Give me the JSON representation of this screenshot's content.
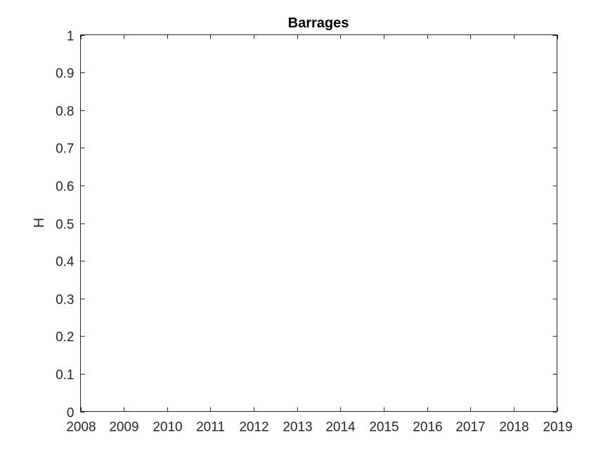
{
  "chart_data": {
    "type": "line",
    "title": "Barrages",
    "xlabel": "",
    "ylabel": "H",
    "xlim": [
      2008,
      2019
    ],
    "ylim": [
      0,
      1
    ],
    "x_ticks": [
      "2008",
      "2009",
      "2010",
      "2011",
      "2012",
      "2013",
      "2014",
      "2015",
      "2016",
      "2017",
      "2018",
      "2019"
    ],
    "y_ticks": [
      "0",
      "0.1",
      "0.2",
      "0.3",
      "0.4",
      "0.5",
      "0.6",
      "0.7",
      "0.8",
      "0.9",
      "1"
    ],
    "series": [],
    "grid": false,
    "legend": "none",
    "colors": {
      "axis": "#262626",
      "title": "#000000",
      "background": "#ffffff"
    }
  }
}
